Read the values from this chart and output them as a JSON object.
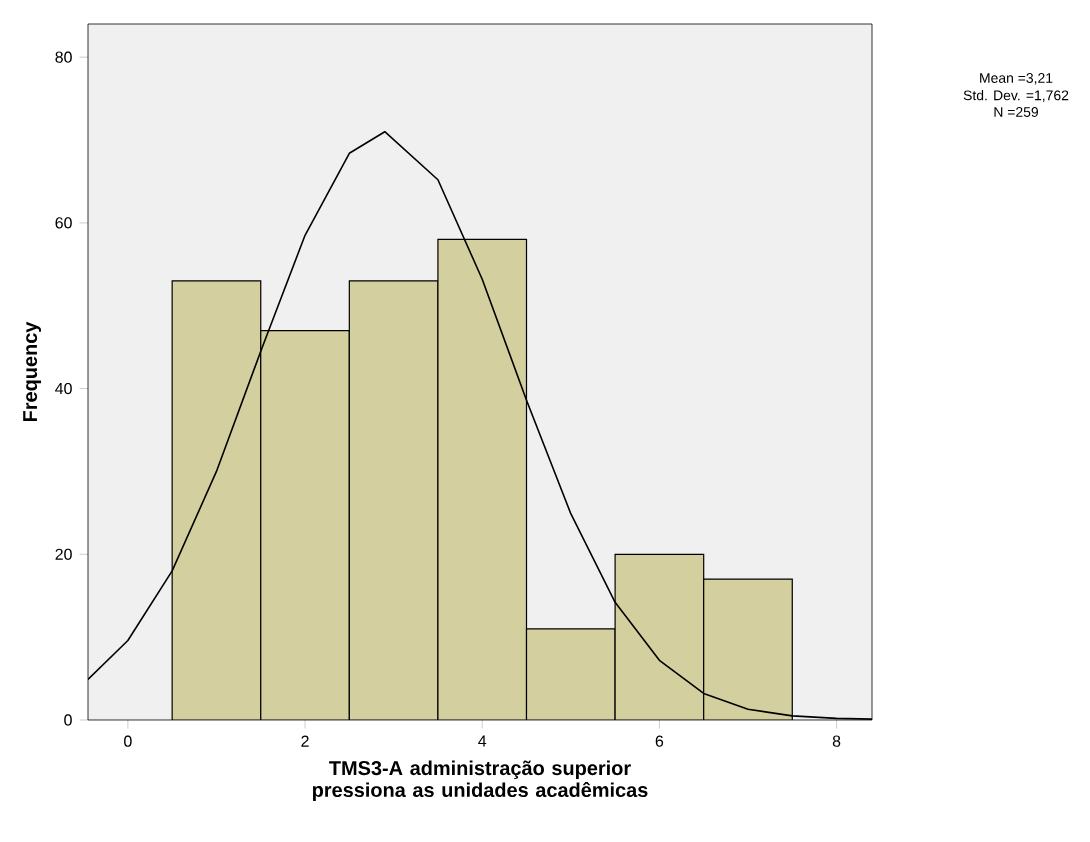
{
  "chart_data": {
    "type": "histogram",
    "xlabel": "TMS3-A administração superior pressiona as unidades acadêmicas",
    "ylabel": "Frequency",
    "bins": [
      0.5,
      1.5,
      2.5,
      3.5,
      4.5,
      5.5,
      6.5,
      7.5
    ],
    "values": [
      53,
      47,
      53,
      58,
      11,
      20,
      17
    ],
    "color": "#d3cf9f",
    "series": [
      {
        "type": "line",
        "color": "#000000",
        "x": [
          -0.45,
          0,
          0.5,
          1,
          1.5,
          2,
          2.5,
          2.9,
          3.5,
          4,
          4.5,
          5,
          5.5,
          6,
          6.5,
          7,
          7.5,
          8,
          8.4
        ],
        "values": [
          4.9,
          9.6,
          18,
          30,
          44.5,
          58.5,
          68.4,
          71,
          65.2,
          53.2,
          38.6,
          24.9,
          14.2,
          7.2,
          3.2,
          1.3,
          0.5,
          0.2,
          0.1
        ]
      }
    ],
    "xlim": [
      -0.45,
      8.4
    ],
    "ylim": [
      0,
      84
    ],
    "xticks": [
      0,
      2,
      4,
      6,
      8
    ],
    "yticks": [
      0,
      20,
      40,
      60,
      80
    ],
    "annotations": [
      "Mean =3,21",
      "Std. Dev. =1,762",
      "N =259"
    ],
    "grid": false
  }
}
